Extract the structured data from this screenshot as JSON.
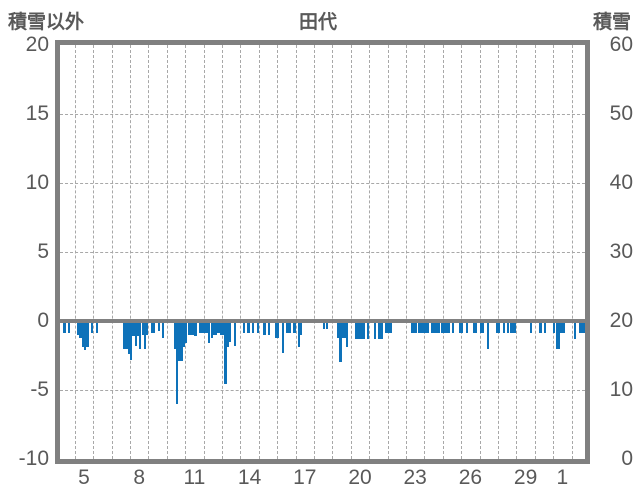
{
  "title": "田代",
  "left_axis_label": "積雪以外",
  "right_axis_label": "積雪",
  "colors": {
    "bar": "#0e72b9",
    "axis_border": "#808080",
    "zero_line": "#808080",
    "gridline": "#a8a8a8",
    "text": "#595959",
    "background": "#ffffff"
  },
  "chart_data": {
    "type": "bar",
    "title": "田代",
    "left_axis": {
      "label": "積雪以外",
      "min": -10,
      "max": 20,
      "ticks": [
        20,
        15,
        10,
        5,
        0,
        -5,
        -10
      ]
    },
    "right_axis": {
      "label": "積雪",
      "min": 0,
      "max": 60,
      "ticks": [
        60,
        50,
        40,
        30,
        20,
        10,
        0
      ]
    },
    "x_axis": {
      "tick_labels": [
        "5",
        "8",
        "11",
        "14",
        "17",
        "20",
        "23",
        "26",
        "29",
        "1"
      ],
      "label_day_indices": [
        1,
        4,
        7,
        10,
        13,
        16,
        19,
        22,
        25,
        27
      ],
      "days_shown": 29,
      "slots_per_day": 8
    },
    "grid": {
      "h_gridline_values": [
        15,
        10,
        5,
        -5
      ],
      "v_gridlines_every_day": true
    },
    "series_axis": "left",
    "days": [
      {
        "day": 4,
        "values": [
          0,
          0,
          0,
          -0.9,
          0,
          -0.9,
          0,
          0
        ]
      },
      {
        "day": 5,
        "values": [
          0,
          -1,
          -1.2,
          -1.9,
          -2.1,
          -1.9,
          0,
          -0.9
        ]
      },
      {
        "day": 6,
        "values": [
          0,
          -0.9,
          0,
          0,
          0,
          0,
          0,
          0
        ]
      },
      {
        "day": 7,
        "values": [
          0,
          0,
          0,
          0,
          0,
          -2,
          -2,
          -2.4
        ]
      },
      {
        "day": 8,
        "values": [
          -2.8,
          -1.1,
          -1.8,
          -1.1,
          -2,
          -1,
          -2,
          -1
        ]
      },
      {
        "day": 9,
        "values": [
          0,
          -0.9,
          -0.9,
          0,
          -0.7,
          0,
          -1.2,
          0
        ]
      },
      {
        "day": 10,
        "values": [
          0,
          0,
          0,
          -2,
          -6,
          -2.9,
          -2.9,
          -1.9
        ]
      },
      {
        "day": 11,
        "values": [
          -1.6,
          -1,
          -1,
          -1,
          -1.1,
          0,
          -0.9,
          -0.9
        ]
      },
      {
        "day": 12,
        "values": [
          -0.9,
          -0.9,
          -1.6,
          -1.2,
          -1,
          -1,
          -0.9,
          -1
        ]
      },
      {
        "day": 13,
        "values": [
          -1,
          -4.6,
          -1.9,
          -1.5,
          0,
          -1.8,
          0,
          0
        ]
      },
      {
        "day": 14,
        "values": [
          0,
          -0.9,
          0,
          -0.9,
          0,
          -0.9,
          0,
          -0.9
        ]
      },
      {
        "day": 15,
        "values": [
          0,
          0,
          -1,
          0,
          -1,
          0,
          0,
          -1.2
        ]
      },
      {
        "day": 16,
        "values": [
          -1.2,
          0,
          -2.3,
          0,
          -0.9,
          -0.9,
          0,
          -0.9
        ]
      },
      {
        "day": 17,
        "values": [
          0,
          -1.9,
          -1,
          0,
          0,
          0,
          0,
          0
        ]
      },
      {
        "day": 18,
        "values": [
          0,
          0,
          0,
          0,
          -0.6,
          -0.6,
          0,
          0
        ]
      },
      {
        "day": 19,
        "values": [
          0,
          0,
          -1.2,
          -3,
          -1.2,
          -1.2,
          -1.9,
          0
        ]
      },
      {
        "day": 20,
        "values": [
          0,
          0,
          -1.3,
          -1.3,
          -1.3,
          -1.3,
          0,
          -1.3
        ]
      },
      {
        "day": 21,
        "values": [
          0,
          0,
          -1.3,
          0,
          -1.3,
          -1.3,
          0,
          -0.9
        ]
      },
      {
        "day": 22,
        "values": [
          -0.9,
          -0.9,
          0,
          0,
          0,
          0,
          0,
          0
        ]
      },
      {
        "day": 23,
        "values": [
          0,
          0,
          -0.9,
          -0.9,
          -0.9,
          -0.9,
          -0.9,
          -0.9
        ]
      },
      {
        "day": 24,
        "values": [
          -0.9,
          -0.9,
          0,
          -0.9,
          -0.9,
          -0.9,
          -0.9,
          -0.9
        ]
      },
      {
        "day": 25,
        "values": [
          -0.9,
          -0.9,
          -0.9,
          0,
          -0.9,
          0,
          0,
          -0.9
        ]
      },
      {
        "day": 26,
        "values": [
          -0.9,
          0,
          -0.9,
          0,
          0,
          -0.9,
          -0.9,
          0
        ]
      },
      {
        "day": 27,
        "values": [
          -0.9,
          -0.9,
          0,
          -2,
          0,
          0,
          0,
          -0.9
        ]
      },
      {
        "day": 28,
        "values": [
          -0.9,
          0,
          -0.9,
          0,
          -0.9,
          -0.9,
          -0.9,
          -0.9
        ]
      },
      {
        "day": 29,
        "values": [
          0,
          0,
          0,
          0,
          0,
          0,
          -0.9,
          0
        ]
      },
      {
        "day": 30,
        "values": [
          0,
          0,
          -0.9,
          0,
          -0.9,
          0,
          0,
          0
        ]
      },
      {
        "day": 1,
        "values": [
          -0.9,
          -2,
          -2,
          -0.9,
          -0.9,
          0,
          0,
          0
        ]
      },
      {
        "day": 2,
        "values": [
          0,
          -1.3,
          0,
          -0.9,
          -0.9,
          -0.9,
          0,
          0
        ]
      }
    ]
  }
}
